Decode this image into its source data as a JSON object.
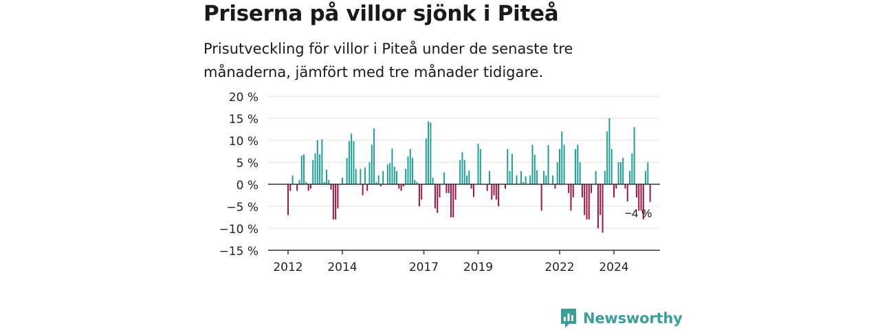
{
  "header": {
    "title": "Priserna på villor sjönk i Piteå",
    "subtitle": "Prisutveckling för villor i Piteå under de senaste tre månaderna, jämfört med tre månader tidigare."
  },
  "brand": {
    "name": "Newsworthy",
    "color": "#3a9e98"
  },
  "colors": {
    "positive": "#1a9e96",
    "negative": "#a0103f",
    "grid": "#dddddd",
    "axis": "#333333"
  },
  "chart_data": {
    "type": "bar",
    "title": "Priserna på villor sjönk i Piteå",
    "subtitle": "Prisutveckling för villor i Piteå under de senaste tre månaderna, jämfört med tre månader tidigare.",
    "xlabel": "",
    "ylabel": "",
    "ylim": [
      -15,
      20
    ],
    "y_ticks": [
      20,
      15,
      10,
      5,
      0,
      -5,
      -10,
      -15
    ],
    "y_tick_labels": [
      "20 %",
      "15 %",
      "10 %",
      "5 %",
      "0 %",
      "−5 %",
      "−10 %",
      "−15 %"
    ],
    "x_range": [
      "2012-01",
      "2025-06"
    ],
    "x_tick_labels": [
      {
        "label": "2012",
        "month": "2012-01"
      },
      {
        "label": "2014",
        "month": "2014-01"
      },
      {
        "label": "2017",
        "month": "2017-01"
      },
      {
        "label": "2019",
        "month": "2019-01"
      },
      {
        "label": "2022",
        "month": "2022-01"
      },
      {
        "label": "2024",
        "month": "2024-01"
      }
    ],
    "grid": true,
    "series": [
      {
        "start_month": "2012-01",
        "values": [
          -7,
          -1.5,
          2,
          0,
          -1.5,
          1,
          6.5,
          6.8,
          0.5,
          -1.5,
          -1,
          5.5,
          7,
          10,
          6.8,
          10.2,
          0.5,
          3.3,
          1,
          -1.2,
          -8,
          -8,
          -5.5,
          0,
          1.5,
          0,
          6,
          9.8,
          11.5,
          9.8,
          3.5,
          0,
          3.5,
          -2.5,
          3.8,
          -1.5,
          5,
          9,
          12.7,
          0.5,
          2,
          -0.5,
          3,
          0,
          4.5,
          4.8,
          8.1,
          4,
          3,
          -1,
          -1.5,
          -0.5,
          3.5,
          6.3,
          8,
          6,
          1,
          0.5,
          -5,
          -3.5,
          0,
          10.4,
          14.3,
          14,
          1.5,
          -5.5,
          -6.5,
          -3,
          0,
          2.7,
          -2,
          -2,
          -7.5,
          -7.5,
          -3.5,
          0,
          5.5,
          7.3,
          5.5,
          2,
          3.1,
          -1,
          -2.9,
          0,
          9.2,
          8,
          0,
          0,
          -1.5,
          3,
          -3.5,
          -2.5,
          -3.5,
          -5,
          0,
          0,
          -1,
          8,
          3,
          6.9,
          0,
          2,
          0,
          3,
          0.5,
          1.8,
          0,
          2,
          9,
          6.7,
          3.2,
          0,
          -6,
          3,
          2,
          8.9,
          0,
          2,
          -1,
          5,
          8,
          12,
          9,
          0,
          -2,
          -6,
          -3,
          8,
          9,
          5,
          -3,
          -7,
          -8,
          -8,
          -2,
          0,
          3,
          -10,
          -7,
          -11,
          3,
          12,
          15,
          8,
          -3,
          -1,
          5,
          5,
          6,
          -1,
          -3.9,
          3,
          7,
          13,
          -3,
          -6,
          -6,
          -8,
          3,
          5,
          -4
        ]
      }
    ],
    "annotations": [
      {
        "text": "−4 %",
        "month": "2024-12",
        "value": -4
      }
    ]
  }
}
